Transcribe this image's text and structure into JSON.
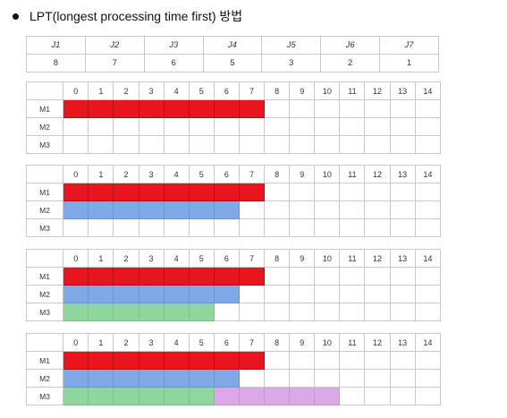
{
  "heading": "LPT(longest processing time first) 방법",
  "jobs": {
    "names": [
      "J1",
      "J2",
      "J3",
      "J4",
      "J5",
      "J6",
      "J7"
    ],
    "times": [
      "8",
      "7",
      "6",
      "5",
      "3",
      "2",
      "1"
    ]
  },
  "time_labels": [
    "0",
    "1",
    "2",
    "3",
    "4",
    "5",
    "6",
    "7",
    "8",
    "9",
    "10",
    "11",
    "12",
    "13",
    "14"
  ],
  "machines": [
    "M1",
    "M2",
    "M3"
  ],
  "colors": {
    "red": "#e8141e",
    "blue": "#7ea9e6",
    "green": "#8ed69b",
    "purple": "#dca8e6"
  },
  "stages": [
    {
      "rows": [
        [
          {
            "color": "red",
            "start": 0,
            "end": 8
          }
        ],
        [],
        []
      ]
    },
    {
      "rows": [
        [
          {
            "color": "red",
            "start": 0,
            "end": 8
          }
        ],
        [
          {
            "color": "blue",
            "start": 0,
            "end": 7
          }
        ],
        []
      ]
    },
    {
      "rows": [
        [
          {
            "color": "red",
            "start": 0,
            "end": 8
          }
        ],
        [
          {
            "color": "blue",
            "start": 0,
            "end": 7
          }
        ],
        [
          {
            "color": "green",
            "start": 0,
            "end": 6
          }
        ]
      ]
    },
    {
      "rows": [
        [
          {
            "color": "red",
            "start": 0,
            "end": 8
          }
        ],
        [
          {
            "color": "blue",
            "start": 0,
            "end": 7
          }
        ],
        [
          {
            "color": "green",
            "start": 0,
            "end": 6
          },
          {
            "color": "purple",
            "start": 6,
            "end": 11
          }
        ]
      ]
    }
  ]
}
